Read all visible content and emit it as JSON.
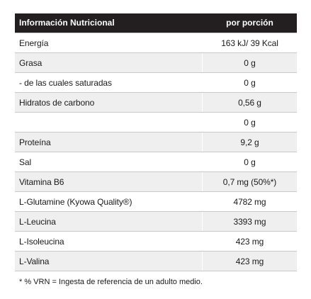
{
  "table": {
    "header": {
      "label": "Información Nutricional",
      "value": "por porción"
    },
    "rows": [
      {
        "label": "Energía",
        "value": "163 kJ/ 39 Kcal",
        "shaded": false
      },
      {
        "label": "Grasa",
        "value": "0 g",
        "shaded": true
      },
      {
        "label": "- de las cuales saturadas",
        "value": "0 g",
        "shaded": false
      },
      {
        "label": "Hidratos de carbono",
        "value": "0,56 g",
        "shaded": true
      },
      {
        "label": "",
        "value": "0 g",
        "shaded": false
      },
      {
        "label": "Proteína",
        "value": "9,2 g",
        "shaded": true
      },
      {
        "label": "Sal",
        "value": "0 g",
        "shaded": false
      },
      {
        "label": "Vitamina B6",
        "value": "0,7 mg (50%*)",
        "shaded": true
      },
      {
        "label": "L-Glutamine (Kyowa Quality®)",
        "value": "4782 mg",
        "shaded": false
      },
      {
        "label": "L-Leucina",
        "value": "3393 mg",
        "shaded": true
      },
      {
        "label": "L-Isoleucina",
        "value": "423 mg",
        "shaded": false
      },
      {
        "label": "L-Valina",
        "value": "423 mg",
        "shaded": true
      }
    ]
  },
  "footnote": "* % VRN = Ingesta de referencia de un adulto medio."
}
